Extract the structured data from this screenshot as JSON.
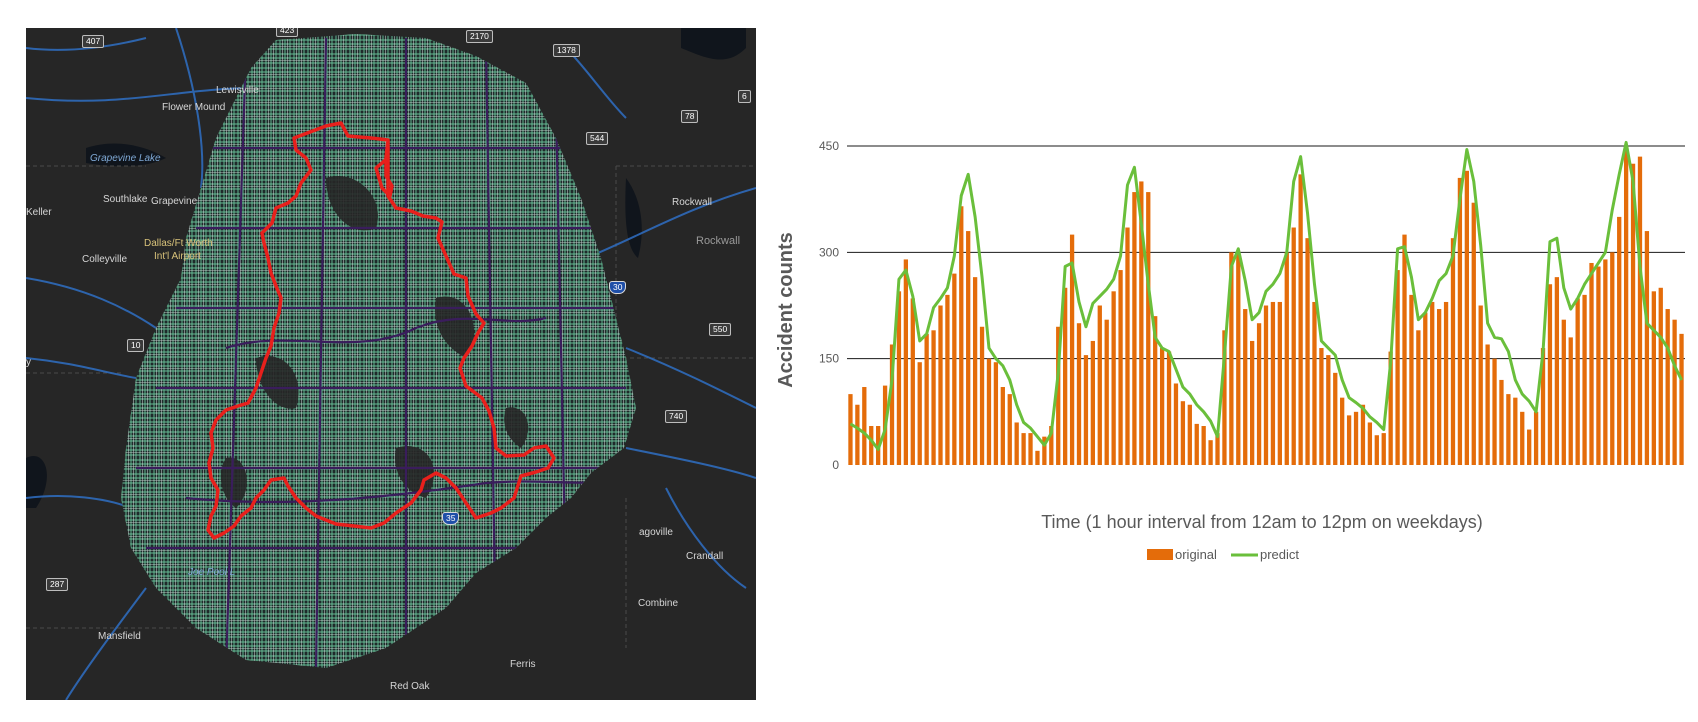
{
  "map": {
    "road_labels": [
      "407",
      "423",
      "2170",
      "1378",
      "78",
      "544",
      "6",
      "10",
      "550",
      "740",
      "287",
      "35",
      "30"
    ],
    "place_labels": {
      "lewisville": "Lewisville",
      "flower_mound": "Flower Mound",
      "grapevine_lake": "Grapevine Lake",
      "keller": "Keller",
      "southlake": "Southlake",
      "grapevine": "Grapevine",
      "dfw_line1": "Dallas/Ft Worth",
      "dfw_line2": "Int'l Airport",
      "colleyville": "Colleyville",
      "rockwall_city": "Rockwall",
      "rockwall_county": "Rockwall",
      "joe_pool": "Joe Pool L",
      "mansfield": "Mansfield",
      "red_oak": "Red Oak",
      "ferris": "Ferris",
      "combine": "Combine",
      "crandall": "Crandall",
      "seagoville": "agoville",
      "left_edge": "y"
    },
    "colors": {
      "background": "#262626",
      "city_boundary": "#e8201c",
      "street_network": "#5fbf95",
      "major_roads": "#3a1d5c",
      "highways": "#2f6fc4"
    }
  },
  "chart_data": {
    "type": "bar",
    "xlabel": "Time (1 hour interval from 12am to 12pm on weekdays)",
    "ylabel": "Accident counts",
    "ylim": [
      0,
      450
    ],
    "yticks": [
      0,
      150,
      300,
      450
    ],
    "grid": true,
    "legend_position": "bottom",
    "colors": {
      "original": "#e46c0a",
      "predict": "#6abf3b"
    },
    "series": [
      {
        "name": "original",
        "type": "bar",
        "values": [
          100,
          85,
          110,
          55,
          55,
          112,
          170,
          245,
          290,
          235,
          145,
          185,
          190,
          225,
          240,
          270,
          365,
          330,
          265,
          195,
          150,
          145,
          110,
          100,
          60,
          45,
          45,
          20,
          40,
          55,
          195,
          250,
          325,
          200,
          155,
          175,
          225,
          205,
          245,
          275,
          335,
          385,
          400,
          385,
          210,
          165,
          160,
          115,
          90,
          85,
          58,
          55,
          35,
          45,
          190,
          300,
          300,
          220,
          175,
          200,
          225,
          230,
          230,
          300,
          335,
          410,
          320,
          230,
          165,
          155,
          130,
          95,
          70,
          75,
          85,
          60,
          42,
          45,
          160,
          275,
          325,
          240,
          190,
          215,
          230,
          220,
          230,
          320,
          405,
          415,
          370,
          225,
          170,
          150,
          120,
          100,
          95,
          75,
          50,
          75,
          165,
          255,
          265,
          205,
          180,
          235,
          240,
          285,
          280,
          290,
          300,
          350,
          450,
          425,
          435,
          330,
          245,
          250,
          220,
          205,
          185
        ]
      },
      {
        "name": "predict",
        "type": "line",
        "values": [
          58,
          52,
          45,
          35,
          22,
          50,
          120,
          262,
          275,
          238,
          175,
          185,
          222,
          235,
          250,
          295,
          380,
          410,
          350,
          265,
          165,
          150,
          140,
          120,
          85,
          60,
          52,
          40,
          28,
          45,
          130,
          280,
          285,
          230,
          195,
          228,
          238,
          248,
          262,
          295,
          395,
          420,
          340,
          255,
          180,
          165,
          160,
          135,
          110,
          100,
          85,
          75,
          62,
          40,
          155,
          280,
          305,
          260,
          205,
          215,
          245,
          255,
          270,
          300,
          400,
          435,
          355,
          255,
          175,
          165,
          155,
          120,
          95,
          88,
          80,
          68,
          60,
          50,
          145,
          305,
          308,
          265,
          205,
          215,
          235,
          260,
          270,
          295,
          375,
          445,
          400,
          310,
          200,
          180,
          178,
          160,
          120,
          100,
          90,
          75,
          160,
          315,
          320,
          250,
          220,
          235,
          255,
          270,
          285,
          300,
          360,
          410,
          455,
          400,
          280,
          200,
          190,
          180,
          165,
          140,
          120
        ]
      }
    ]
  }
}
